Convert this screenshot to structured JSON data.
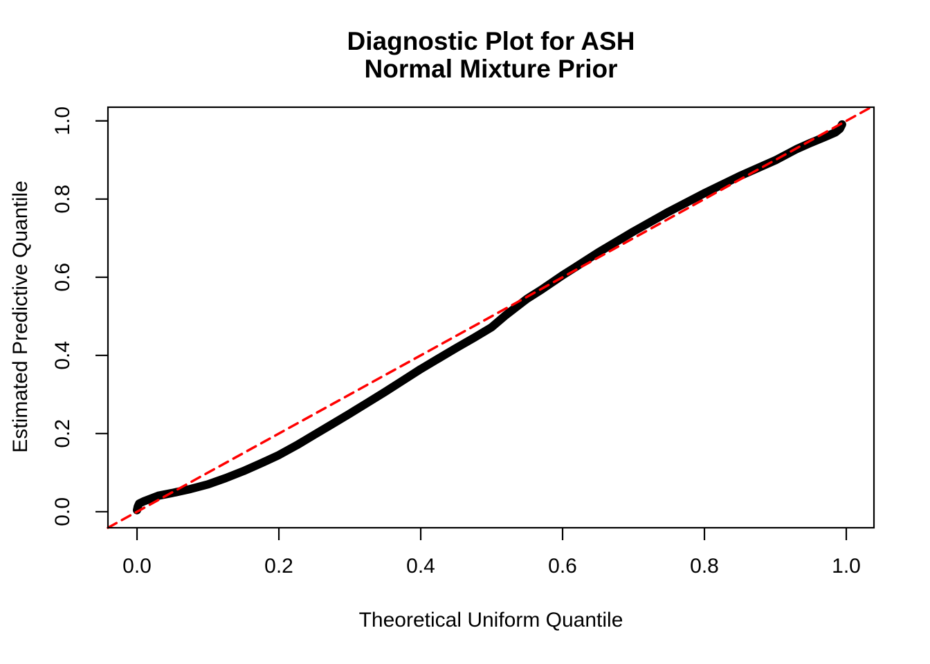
{
  "title": {
    "line1": "Diagnostic Plot for ASH",
    "line2": "Normal Mixture Prior"
  },
  "axes": {
    "x_label": "Theoretical Uniform Quantile",
    "y_label": "Estimated Predictive Quantile"
  },
  "colors": {
    "background": "#FFFFFF",
    "curve": "#000000",
    "reference_line": "#FF0000",
    "axis": "#000000"
  },
  "chart_data": {
    "type": "line",
    "title": "Diagnostic Plot for ASH\nNormal Mixture Prior",
    "xlabel": "Theoretical Uniform Quantile",
    "ylabel": "Estimated Predictive Quantile",
    "xlim": [
      -0.041,
      1.039
    ],
    "ylim": [
      -0.041,
      1.035
    ],
    "grid": false,
    "legend": null,
    "x_ticks": {
      "values": [
        0,
        0.2,
        0.4,
        0.6,
        0.8,
        1
      ],
      "labels": [
        "0.0",
        "0.2",
        "0.4",
        "0.6",
        "0.8",
        "1.0"
      ]
    },
    "y_ticks": {
      "values": [
        0,
        0.2,
        0.4,
        0.6,
        0.8,
        1
      ],
      "labels": [
        "0.0",
        "0.2",
        "0.4",
        "0.6",
        "0.8",
        "1.0"
      ]
    },
    "series": [
      {
        "name": "estimated-predictive-quantile-curve",
        "type": "line",
        "color": "#000000",
        "stroke_width": 12,
        "dash": null,
        "points": [
          [
            0.0,
            0.004
          ],
          [
            0.001,
            0.013
          ],
          [
            0.003,
            0.021
          ],
          [
            0.01,
            0.027
          ],
          [
            0.03,
            0.041
          ],
          [
            0.05,
            0.048
          ],
          [
            0.075,
            0.058
          ],
          [
            0.1,
            0.07
          ],
          [
            0.125,
            0.086
          ],
          [
            0.15,
            0.104
          ],
          [
            0.175,
            0.124
          ],
          [
            0.2,
            0.145
          ],
          [
            0.225,
            0.17
          ],
          [
            0.25,
            0.197
          ],
          [
            0.275,
            0.224
          ],
          [
            0.3,
            0.251
          ],
          [
            0.325,
            0.279
          ],
          [
            0.35,
            0.307
          ],
          [
            0.375,
            0.336
          ],
          [
            0.4,
            0.365
          ],
          [
            0.425,
            0.392
          ],
          [
            0.45,
            0.419
          ],
          [
            0.475,
            0.445
          ],
          [
            0.5,
            0.472
          ],
          [
            0.52,
            0.503
          ],
          [
            0.55,
            0.545
          ],
          [
            0.57,
            0.568
          ],
          [
            0.6,
            0.605
          ],
          [
            0.62,
            0.628
          ],
          [
            0.65,
            0.663
          ],
          [
            0.7,
            0.717
          ],
          [
            0.75,
            0.768
          ],
          [
            0.8,
            0.815
          ],
          [
            0.85,
            0.859
          ],
          [
            0.9,
            0.899
          ],
          [
            0.93,
            0.928
          ],
          [
            0.95,
            0.944
          ],
          [
            0.97,
            0.959
          ],
          [
            0.985,
            0.971
          ],
          [
            0.991,
            0.98
          ],
          [
            0.994,
            0.991
          ]
        ]
      },
      {
        "name": "reference-diagonal-y-equals-x",
        "type": "line",
        "color": "#FF0000",
        "stroke_width": 3.5,
        "dash": [
          14,
          9
        ],
        "points": [
          [
            -0.041,
            -0.041
          ],
          [
            1.035,
            1.035
          ]
        ]
      }
    ]
  }
}
